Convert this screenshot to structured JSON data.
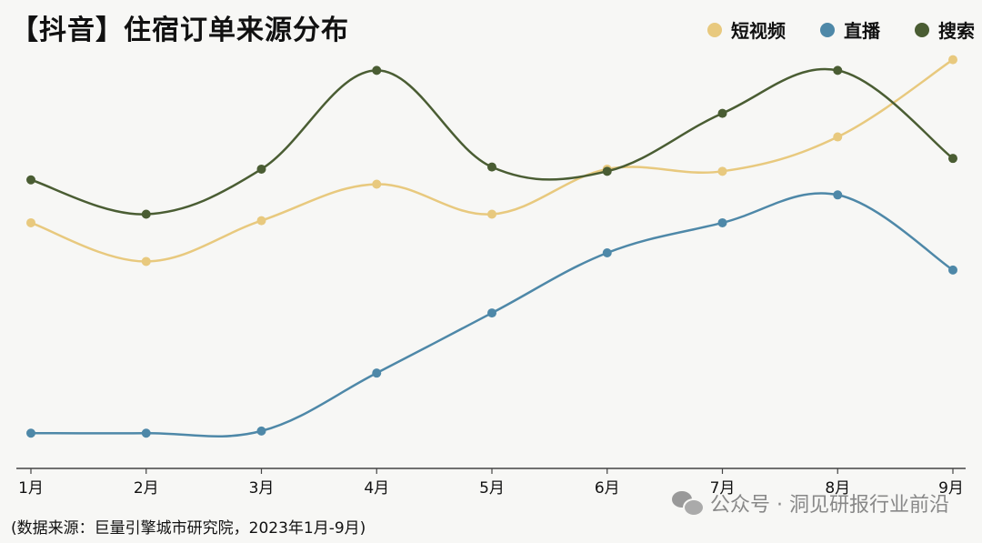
{
  "header": {
    "title": "【抖音】住宿订单来源分布"
  },
  "chart_data": {
    "type": "line",
    "title": "【抖音】住宿订单来源分布",
    "categories": [
      "1月",
      "2月",
      "3月",
      "4月",
      "5月",
      "6月",
      "7月",
      "8月",
      "9月"
    ],
    "ylim": [
      0,
      100
    ],
    "grid": false,
    "legend_position": "top-right",
    "series": [
      {
        "name": "短视频",
        "color": "#e8c97e",
        "values": [
          57,
          48,
          57.5,
          66,
          59,
          69.5,
          69,
          77,
          95
        ]
      },
      {
        "name": "直播",
        "color": "#4e88a8",
        "values": [
          8,
          8,
          8.5,
          22,
          36,
          50,
          57,
          63.5,
          46
        ]
      },
      {
        "name": "搜索",
        "color": "#4a5d33",
        "values": [
          67,
          59,
          69.5,
          92.5,
          70,
          69,
          82.5,
          92.5,
          72
        ]
      }
    ]
  },
  "legend": {
    "items": [
      {
        "label": "短视频",
        "color": "#e8c97e"
      },
      {
        "label": "直播",
        "color": "#4e88a8"
      },
      {
        "label": "搜索",
        "color": "#4a5d33"
      }
    ]
  },
  "footer": {
    "source": "(数据来源：巨量引擎城市研究院，2023年1月-9月)"
  },
  "watermark": {
    "text": "公众号 · 洞见研报行业前沿",
    "icon": "wechat-icon"
  }
}
